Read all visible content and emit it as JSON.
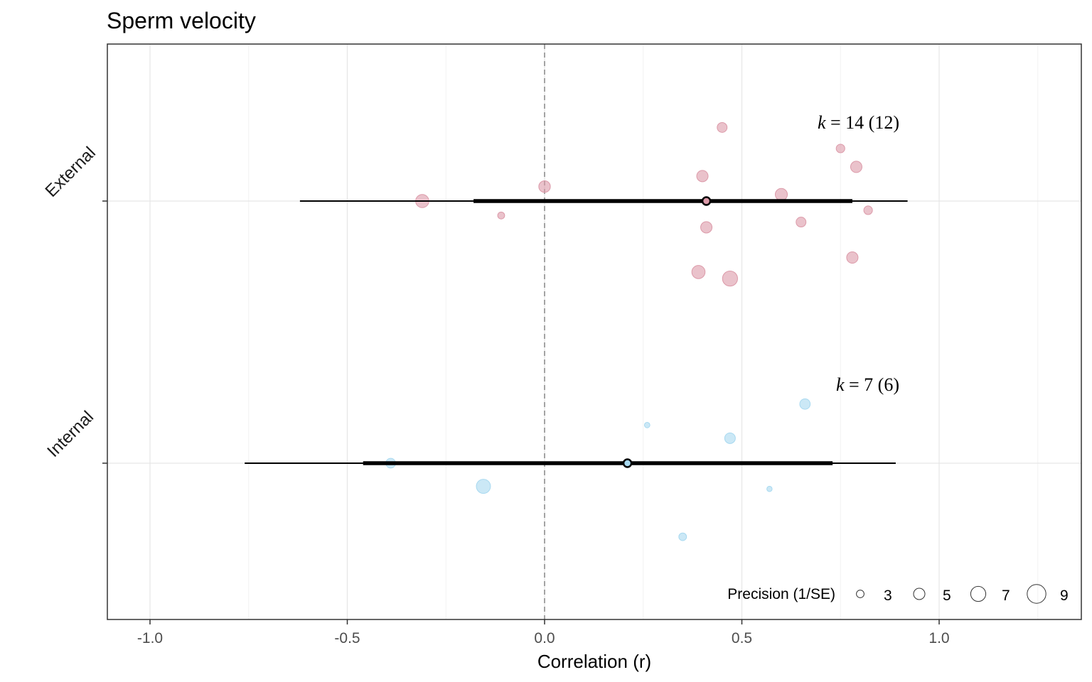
{
  "chart_data": {
    "type": "scatter",
    "title": "Sperm velocity",
    "xlabel": "Correlation (r)",
    "ylabel": "",
    "xlim": [
      -1.1,
      1.35
    ],
    "x_ticks": [
      -1.0,
      -0.5,
      0.0,
      0.5,
      1.0
    ],
    "x_tick_labels": [
      "-1.0",
      "-0.5",
      "0.0",
      "0.5",
      "1.0"
    ],
    "grid": true,
    "reference_line": 0.0,
    "categories": [
      "External",
      "Internal"
    ],
    "groups": [
      {
        "category": "External",
        "color": "#dc9aa9",
        "estimate": 0.41,
        "ci": [
          -0.18,
          0.78
        ],
        "pi": [
          -0.62,
          0.92
        ],
        "k_label": "= 14 (12)",
        "points": [
          {
            "r": 0.45,
            "jitter": 0.28,
            "precision": 4.2
          },
          {
            "r": 0.75,
            "jitter": 0.2,
            "precision": 3.5
          },
          {
            "r": 0.79,
            "jitter": 0.13,
            "precision": 5.0
          },
          {
            "r": 0.4,
            "jitter": 0.095,
            "precision": 5.0
          },
          {
            "r": 0.0,
            "jitter": 0.055,
            "precision": 5.1
          },
          {
            "r": 0.6,
            "jitter": 0.025,
            "precision": 5.4
          },
          {
            "r": -0.31,
            "jitter": 0.0,
            "precision": 6.0
          },
          {
            "r": 0.82,
            "jitter": -0.035,
            "precision": 3.5
          },
          {
            "r": -0.11,
            "jitter": -0.055,
            "precision": 2.6
          },
          {
            "r": 0.65,
            "jitter": -0.08,
            "precision": 4.2
          },
          {
            "r": 0.41,
            "jitter": -0.1,
            "precision": 5.0
          },
          {
            "r": 0.78,
            "jitter": -0.215,
            "precision": 5.0
          },
          {
            "r": 0.39,
            "jitter": -0.27,
            "precision": 6.0
          },
          {
            "r": 0.47,
            "jitter": -0.295,
            "precision": 7.0
          }
        ]
      },
      {
        "category": "Internal",
        "color": "#a8d9f0",
        "estimate": 0.21,
        "ci": [
          -0.46,
          0.73
        ],
        "pi": [
          -0.76,
          0.89
        ],
        "k_label": "= 7 (6)",
        "points": [
          {
            "r": 0.66,
            "jitter": 0.225,
            "precision": 4.5
          },
          {
            "r": 0.26,
            "jitter": 0.145,
            "precision": 1.8
          },
          {
            "r": 0.47,
            "jitter": 0.095,
            "precision": 4.6
          },
          {
            "r": -0.39,
            "jitter": 0.0,
            "precision": 4.1
          },
          {
            "r": -0.155,
            "jitter": -0.088,
            "precision": 6.5
          },
          {
            "r": 0.57,
            "jitter": -0.098,
            "precision": 1.7
          },
          {
            "r": 0.35,
            "jitter": -0.28,
            "precision": 3.0
          }
        ]
      }
    ],
    "legend": {
      "title": "Precision (1/SE)",
      "position": "bottom-right",
      "items": [
        {
          "label": "3",
          "precision": 3
        },
        {
          "label": "5",
          "precision": 5
        },
        {
          "label": "7",
          "precision": 7
        },
        {
          "label": "9",
          "precision": 9
        }
      ]
    }
  }
}
